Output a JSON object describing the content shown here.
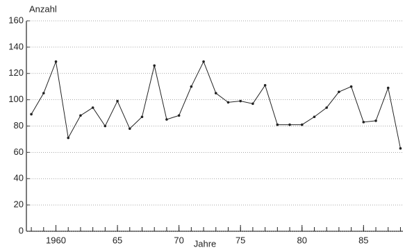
{
  "chart_data": {
    "type": "line",
    "y_label": "Anzahl",
    "x_label": "Jahre",
    "x": [
      1958,
      1959,
      1960,
      1961,
      1962,
      1963,
      1964,
      1965,
      1966,
      1967,
      1968,
      1969,
      1970,
      1971,
      1972,
      1973,
      1974,
      1975,
      1976,
      1977,
      1978,
      1979,
      1980,
      1981,
      1982,
      1983,
      1984,
      1985,
      1986,
      1987,
      1988
    ],
    "series": [
      {
        "name": "Anzahl",
        "color": "#222222",
        "values": [
          89,
          105,
          129,
          71,
          88,
          94,
          80,
          99,
          78,
          87,
          126,
          85,
          88,
          110,
          129,
          105,
          98,
          99,
          97,
          111,
          81,
          81,
          81,
          87,
          94,
          106,
          110,
          83,
          84,
          109,
          63
        ]
      }
    ],
    "xlim": [
      1957.6,
      1988.2
    ],
    "xticks": [
      1960,
      {
        "value": 1965,
        "label": "65"
      },
      {
        "value": 1970,
        "label": "70"
      },
      {
        "value": 1975,
        "label": "75"
      },
      {
        "value": 1980,
        "label": "80"
      },
      {
        "value": 1985,
        "label": "85"
      }
    ],
    "ylim": [
      0,
      160
    ],
    "yticks": [
      0,
      20,
      40,
      60,
      80,
      100,
      120,
      140,
      160
    ],
    "grid": true
  }
}
